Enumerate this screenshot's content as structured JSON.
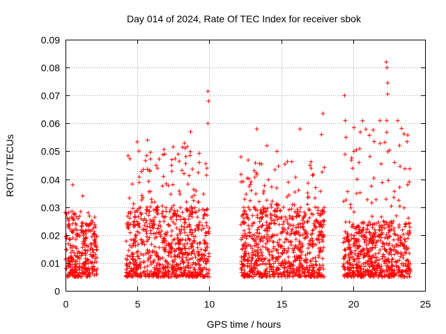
{
  "chart_data": {
    "type": "scatter",
    "title": "Day 014 of 2024, Rate Of TEC Index for receiver sbok",
    "xlabel": "GPS time / hours",
    "ylabel": "ROTI / TECUs",
    "xlim": [
      0,
      25
    ],
    "ylim": [
      0,
      0.09
    ],
    "x_ticks": [
      "0",
      "5",
      "10",
      "15",
      "20",
      "25"
    ],
    "y_ticks": [
      "0",
      "0.01",
      "0.02",
      "0.03",
      "0.04",
      "0.05",
      "0.06",
      "0.07",
      "0.08",
      "0.09"
    ],
    "grid": true,
    "legend": "none",
    "marker": "+",
    "color": "#ff0000",
    "segments": [
      {
        "x_start": 0.0,
        "x_end": 2.2,
        "typical_range": [
          0.005,
          0.025
        ],
        "max": 0.038
      },
      {
        "x_start": 4.2,
        "x_end": 10.0,
        "typical_range": [
          0.005,
          0.03
        ],
        "max": 0.0715
      },
      {
        "x_start": 12.2,
        "x_end": 18.0,
        "typical_range": [
          0.005,
          0.03
        ],
        "max": 0.0635
      },
      {
        "x_start": 19.3,
        "x_end": 24.0,
        "typical_range": [
          0.005,
          0.025
        ],
        "max": 0.082
      }
    ],
    "peaks": [
      {
        "x": 0.5,
        "y": 0.038
      },
      {
        "x": 1.2,
        "y": 0.034
      },
      {
        "x": 5.7,
        "y": 0.054
      },
      {
        "x": 6.3,
        "y": 0.045
      },
      {
        "x": 6.9,
        "y": 0.049
      },
      {
        "x": 7.4,
        "y": 0.047
      },
      {
        "x": 8.7,
        "y": 0.057
      },
      {
        "x": 9.3,
        "y": 0.046
      },
      {
        "x": 9.9,
        "y": 0.0715
      },
      {
        "x": 9.95,
        "y": 0.068
      },
      {
        "x": 9.9,
        "y": 0.06
      },
      {
        "x": 12.2,
        "y": 0.048
      },
      {
        "x": 13.3,
        "y": 0.058
      },
      {
        "x": 14.0,
        "y": 0.052
      },
      {
        "x": 14.7,
        "y": 0.05
      },
      {
        "x": 16.3,
        "y": 0.058
      },
      {
        "x": 17.0,
        "y": 0.045
      },
      {
        "x": 17.8,
        "y": 0.056
      },
      {
        "x": 17.9,
        "y": 0.0635
      },
      {
        "x": 19.4,
        "y": 0.07
      },
      {
        "x": 19.45,
        "y": 0.061
      },
      {
        "x": 19.5,
        "y": 0.055
      },
      {
        "x": 22.3,
        "y": 0.082
      },
      {
        "x": 22.35,
        "y": 0.08
      },
      {
        "x": 22.4,
        "y": 0.0745
      },
      {
        "x": 22.4,
        "y": 0.0705
      },
      {
        "x": 23.9,
        "y": 0.039
      }
    ]
  }
}
